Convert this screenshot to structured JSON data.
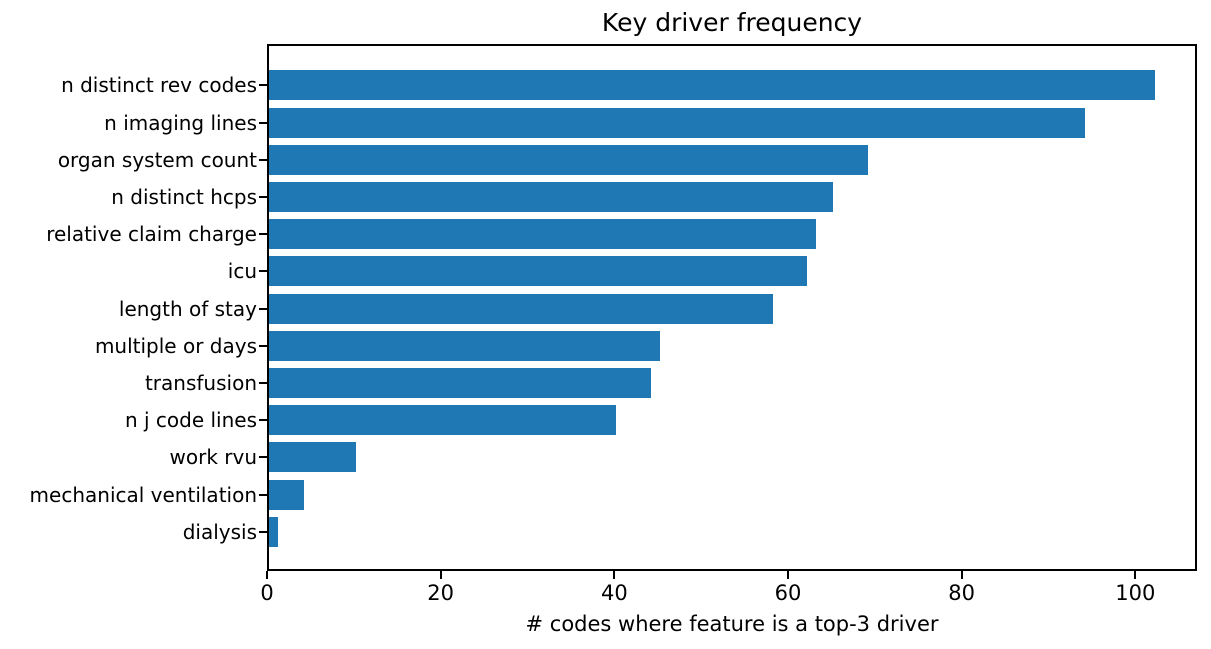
{
  "chart_data": {
    "type": "bar",
    "orientation": "horizontal",
    "title": "Key driver frequency",
    "xlabel": "# codes where feature is a top-3 driver",
    "ylabel": "",
    "categories": [
      "n distinct rev codes",
      "n imaging lines",
      "organ system count",
      "n distinct hcps",
      "relative claim charge",
      "icu",
      "length of stay",
      "multiple or days",
      "transfusion",
      "n j code lines",
      "work rvu",
      "mechanical ventilation",
      "dialysis"
    ],
    "values": [
      102,
      94,
      69,
      65,
      63,
      62,
      58,
      45,
      44,
      40,
      10,
      4,
      1
    ],
    "xticks": [
      0,
      20,
      40,
      60,
      80,
      100
    ],
    "xlim": [
      0,
      107.1
    ],
    "grid": false,
    "legend": null,
    "bar_color": "#1f77b4",
    "text_color": "#000000",
    "background_color": "#ffffff"
  }
}
